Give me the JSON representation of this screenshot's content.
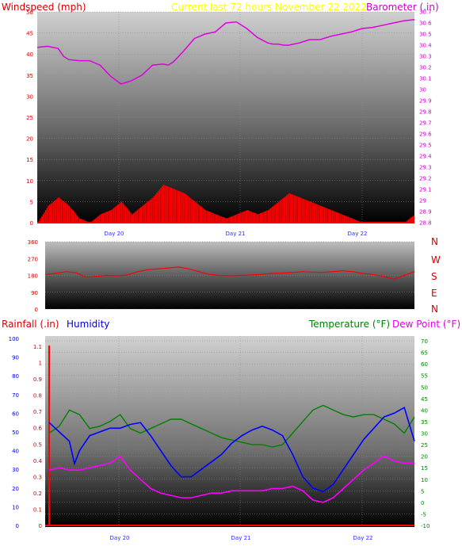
{
  "header": {
    "windspeed_label": "Windspeed (mph)",
    "current_label": "Current last 72 hours November 22 2022",
    "barometer_label": "Barometer (.in)"
  },
  "compass": {
    "letters": [
      "N",
      "W",
      "S",
      "E",
      "N"
    ]
  },
  "lower_header": {
    "rainfall_label": "Rainfall (.in)",
    "humidity_label": "Humidity",
    "temperature_label": "Temperature (°F)",
    "dewpoint_label": "Dew Point (°F)"
  },
  "colors": {
    "windspeed": "#ff0000",
    "barometer": "#dd00dd",
    "current": "#ffff00",
    "direction": "#ff0000",
    "humidity": "#0000ff",
    "temperature": "#008000",
    "dewpoint": "#ff00ff",
    "rainfall": "#ff0000",
    "gust_blue": "#0000ff",
    "gust_green": "#008000"
  },
  "chart_data": [
    {
      "type": "line",
      "name": "wind-barometer",
      "x_ticks": [
        "Day 20",
        "Day 21",
        "Day 22"
      ],
      "y_left": {
        "label": "Windspeed (mph)",
        "ylim": [
          0,
          50
        ],
        "ticks": [
          0,
          5,
          10,
          15,
          20,
          25,
          30,
          35,
          40,
          45,
          50
        ]
      },
      "y_right": {
        "label": "Barometer (.in)",
        "ylim": [
          28.8,
          30.7
        ],
        "ticks": [
          "28.8",
          "28.9",
          "29",
          "29.1",
          "29.2",
          "29.3",
          "29.4",
          "29.5",
          "29.6",
          "29.7",
          "29.8",
          "29.9",
          "30",
          "30.1",
          "30.2",
          "30.3",
          "30.4",
          "30.5",
          "30.6",
          "30.7"
        ]
      },
      "x_hours": [
        0,
        72
      ],
      "barometer_x": [
        0,
        2,
        4,
        5,
        6,
        8,
        10,
        12,
        14,
        16,
        18,
        20,
        22,
        24,
        25,
        26,
        28,
        30,
        32,
        34,
        36,
        38,
        40,
        42,
        44,
        45,
        46,
        47,
        48,
        50,
        52,
        54,
        56,
        58,
        60,
        62,
        64,
        66,
        68,
        70,
        72
      ],
      "barometer_y": [
        30.38,
        30.39,
        30.37,
        30.3,
        30.27,
        30.26,
        30.26,
        30.22,
        30.12,
        30.05,
        30.08,
        30.13,
        30.22,
        30.23,
        30.22,
        30.25,
        30.35,
        30.46,
        30.5,
        30.52,
        30.6,
        30.61,
        30.55,
        30.47,
        30.42,
        30.41,
        30.41,
        30.4,
        30.4,
        30.42,
        30.45,
        30.45,
        30.48,
        30.5,
        30.52,
        30.55,
        30.56,
        30.58,
        30.6,
        30.62,
        30.63
      ],
      "windspeed_x": [
        0,
        2,
        4,
        6,
        8,
        10,
        12,
        14,
        16,
        18,
        20,
        22,
        24,
        26,
        28,
        30,
        32,
        34,
        36,
        38,
        40,
        42,
        44,
        46,
        48,
        50,
        52,
        54,
        56,
        58,
        60,
        62,
        64,
        66,
        68,
        70,
        72
      ],
      "windspeed_y": [
        0,
        4,
        6,
        4,
        1,
        0,
        2,
        3,
        5,
        2,
        4,
        6,
        9,
        8,
        7,
        5,
        3,
        2,
        1,
        2,
        3,
        2,
        3,
        5,
        7,
        6,
        5,
        4,
        3,
        2,
        1,
        0,
        0,
        0,
        0,
        0,
        2
      ],
      "gust_max_mph": 11
    },
    {
      "type": "line",
      "name": "wind-direction",
      "x_ticks": [
        "Day 20",
        "Day 21",
        "Day 22"
      ],
      "y_left": {
        "ylim": [
          0,
          360
        ],
        "ticks": [
          0,
          90,
          180,
          270,
          360
        ]
      },
      "direction_x": [
        0,
        2,
        4,
        6,
        8,
        10,
        12,
        14,
        16,
        18,
        20,
        22,
        24,
        26,
        28,
        30,
        32,
        34,
        36,
        38,
        40,
        42,
        44,
        46,
        48,
        50,
        52,
        54,
        56,
        58,
        60,
        62,
        64,
        66,
        68,
        70,
        72
      ],
      "direction_y": [
        185,
        190,
        200,
        195,
        170,
        175,
        180,
        178,
        182,
        200,
        210,
        215,
        220,
        225,
        215,
        200,
        185,
        180,
        178,
        180,
        182,
        185,
        190,
        192,
        195,
        200,
        198,
        196,
        200,
        205,
        200,
        190,
        185,
        175,
        160,
        180,
        200
      ]
    },
    {
      "type": "line",
      "name": "rain-humidity-temperature",
      "x_ticks": [
        "Day 20",
        "Day 21",
        "Day 22"
      ],
      "y_humidity": {
        "label": "Humidity",
        "ylim": [
          0,
          100
        ],
        "ticks": [
          0,
          10,
          20,
          30,
          40,
          50,
          60,
          70,
          80,
          90,
          100
        ]
      },
      "y_rainfall": {
        "label": "Rainfall (.in)",
        "ylim": [
          0,
          1.1
        ],
        "ticks": [
          "0",
          "0.1",
          "0.2",
          "0.3",
          "0.4",
          "0.5",
          "0.6",
          "0.7",
          "0.8",
          "0.9",
          "1",
          "1.1"
        ]
      },
      "y_temperature": {
        "label": "Temperature (°F)",
        "ylim": [
          -10,
          70
        ],
        "ticks": [
          -10,
          -5,
          0,
          5,
          10,
          15,
          20,
          25,
          30,
          35,
          40,
          45,
          50,
          55,
          60,
          65,
          70
        ]
      },
      "humidity_x": [
        0,
        2,
        4,
        5,
        6,
        8,
        10,
        12,
        14,
        16,
        18,
        20,
        22,
        24,
        26,
        28,
        30,
        32,
        34,
        36,
        38,
        40,
        42,
        44,
        46,
        48,
        50,
        52,
        54,
        56,
        58,
        60,
        62,
        64,
        66,
        68,
        70,
        72
      ],
      "humidity_y": [
        55,
        50,
        45,
        33,
        40,
        48,
        50,
        52,
        52,
        54,
        55,
        48,
        40,
        32,
        26,
        26,
        30,
        34,
        38,
        44,
        48,
        51,
        53,
        51,
        48,
        38,
        26,
        20,
        18,
        22,
        30,
        38,
        46,
        52,
        58,
        60,
        63,
        45
      ],
      "temperature_x": [
        0,
        2,
        4,
        6,
        8,
        10,
        12,
        14,
        16,
        18,
        20,
        22,
        24,
        26,
        28,
        30,
        32,
        34,
        36,
        38,
        40,
        42,
        44,
        46,
        48,
        50,
        52,
        54,
        56,
        58,
        60,
        62,
        64,
        66,
        68,
        70,
        72
      ],
      "temperature_y": [
        30,
        33,
        40,
        38,
        32,
        33,
        35,
        38,
        32,
        30,
        32,
        34,
        36,
        36,
        34,
        32,
        30,
        28,
        27,
        26,
        25,
        25,
        24,
        25,
        30,
        35,
        40,
        42,
        40,
        38,
        37,
        38,
        38,
        36,
        34,
        30,
        37
      ],
      "dewpoint_x": [
        0,
        2,
        4,
        6,
        8,
        10,
        12,
        14,
        16,
        18,
        20,
        22,
        24,
        26,
        28,
        30,
        32,
        34,
        36,
        38,
        40,
        42,
        44,
        46,
        48,
        50,
        52,
        54,
        56,
        58,
        60,
        62,
        64,
        66,
        68,
        70,
        72
      ],
      "dewpoint_y": [
        14,
        15,
        14,
        14,
        15,
        16,
        17,
        20,
        14,
        10,
        6,
        4,
        3,
        2,
        2,
        3,
        4,
        4,
        5,
        5,
        5,
        5,
        6,
        6,
        7,
        5,
        1,
        0,
        2,
        6,
        10,
        14,
        17,
        20,
        18,
        17,
        17
      ],
      "rainfall_y": [
        0,
        0
      ]
    }
  ]
}
